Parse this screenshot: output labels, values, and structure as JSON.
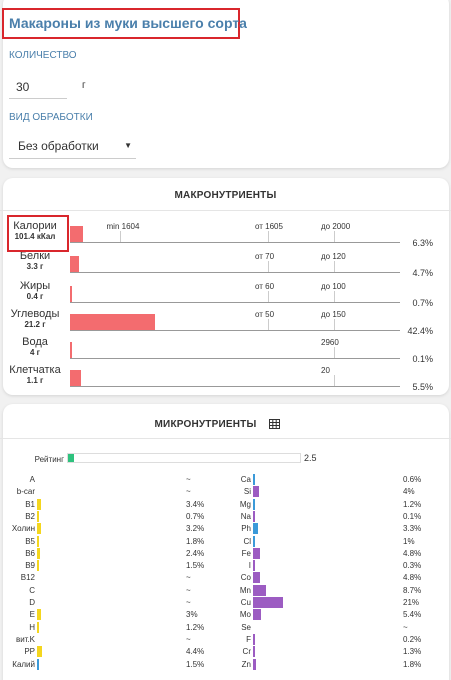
{
  "product": {
    "title": "Макароны из муки высшего сорта",
    "quantity_label": "КОЛИЧЕСТВО",
    "quantity_value": "30",
    "quantity_unit": "г",
    "processing_label": "ВИД ОБРАБОТКИ",
    "processing_value": "Без обработки"
  },
  "colors": {
    "accent": "#4a7fab",
    "highlight_border": "#d9262c",
    "macro_bar": "#f36c6f",
    "rating": "#2ec27e",
    "vitamin": "#f4d61e",
    "vitamin_blue": "#3b9ad9",
    "mineral": "#9c5cc2",
    "mineral_blue": "#3b9ad9"
  },
  "macros": {
    "title": "МАКРОНУТРИЕНТЫ",
    "rows": [
      {
        "name": "Калории",
        "amount": "101.4 кКал",
        "percent": "6.3%",
        "fill": 6.3,
        "ticks": [
          {
            "label": "min 1604",
            "pos": 0.15
          },
          {
            "label": "от 1605",
            "pos": 0.6
          },
          {
            "label": "до 2000",
            "pos": 0.8
          }
        ]
      },
      {
        "name": "Белки",
        "amount": "3.3 г",
        "percent": "4.7%",
        "fill": 4.7,
        "ticks": [
          {
            "label": "от 70",
            "pos": 0.6
          },
          {
            "label": "до 120",
            "pos": 0.8
          }
        ]
      },
      {
        "name": "Жиры",
        "amount": "0.4 г",
        "percent": "0.7%",
        "fill": 0.7,
        "ticks": [
          {
            "label": "от 60",
            "pos": 0.6
          },
          {
            "label": "до 100",
            "pos": 0.8
          }
        ]
      },
      {
        "name": "Углеводы",
        "amount": "21.2 г",
        "percent": "42.4%",
        "fill": 42.4,
        "ticks": [
          {
            "label": "от 50",
            "pos": 0.6
          },
          {
            "label": "до 150",
            "pos": 0.8
          }
        ]
      },
      {
        "name": "Вода",
        "amount": "4 г",
        "percent": "0.1%",
        "fill": 0.1,
        "ticks": [
          {
            "label": "2960",
            "pos": 0.8
          }
        ]
      },
      {
        "name": "Клетчатка",
        "amount": "1.1 г",
        "percent": "5.5%",
        "fill": 5.5,
        "ticks": [
          {
            "label": "20",
            "pos": 0.8
          }
        ]
      }
    ]
  },
  "micros": {
    "title": "МИКРОНУТРИЕНТЫ",
    "table_icon": "table-icon",
    "rating_label": "Рейтинг",
    "rating_value": "2.5",
    "rating_fill": 2.5,
    "left": [
      {
        "name": "A",
        "value": "~",
        "fill": 0
      },
      {
        "name": "b-car",
        "value": "~",
        "fill": 0
      },
      {
        "name": "B1",
        "value": "3.4%",
        "fill": 3.4
      },
      {
        "name": "B2",
        "value": "0.7%",
        "fill": 0.7
      },
      {
        "name": "Холин",
        "value": "3.2%",
        "fill": 3.2
      },
      {
        "name": "B5",
        "value": "1.8%",
        "fill": 1.8
      },
      {
        "name": "B6",
        "value": "2.4%",
        "fill": 2.4
      },
      {
        "name": "B9",
        "value": "1.5%",
        "fill": 1.5
      },
      {
        "name": "B12",
        "value": "~",
        "fill": 0
      },
      {
        "name": "C",
        "value": "~",
        "fill": 0
      },
      {
        "name": "D",
        "value": "~",
        "fill": 0
      },
      {
        "name": "E",
        "value": "3%",
        "fill": 3
      },
      {
        "name": "H",
        "value": "1.2%",
        "fill": 1.2
      },
      {
        "name": "вит.K",
        "value": "~",
        "fill": 0
      },
      {
        "name": "PP",
        "value": "4.4%",
        "fill": 4.4
      },
      {
        "name": "Калий",
        "value": "1.5%",
        "fill": 1.5,
        "blue": true
      }
    ],
    "right": [
      {
        "name": "Ca",
        "value": "0.6%",
        "fill": 0.6,
        "blue": true
      },
      {
        "name": "Si",
        "value": "4%",
        "fill": 4
      },
      {
        "name": "Mg",
        "value": "1.2%",
        "fill": 1.2,
        "blue": true
      },
      {
        "name": "Na",
        "value": "0.1%",
        "fill": 0.1
      },
      {
        "name": "Ph",
        "value": "3.3%",
        "fill": 3.3,
        "blue": true
      },
      {
        "name": "Cl",
        "value": "1%",
        "fill": 1,
        "blue": true
      },
      {
        "name": "Fe",
        "value": "4.8%",
        "fill": 4.8
      },
      {
        "name": "I",
        "value": "0.3%",
        "fill": 0.3
      },
      {
        "name": "Co",
        "value": "4.8%",
        "fill": 4.8
      },
      {
        "name": "Mn",
        "value": "8.7%",
        "fill": 8.7
      },
      {
        "name": "Cu",
        "value": "21%",
        "fill": 21
      },
      {
        "name": "Mo",
        "value": "5.4%",
        "fill": 5.4
      },
      {
        "name": "Se",
        "value": "~",
        "fill": 0
      },
      {
        "name": "F",
        "value": "0.2%",
        "fill": 0.2
      },
      {
        "name": "Cr",
        "value": "1.3%",
        "fill": 1.3
      },
      {
        "name": "Zn",
        "value": "1.8%",
        "fill": 1.8
      }
    ]
  }
}
